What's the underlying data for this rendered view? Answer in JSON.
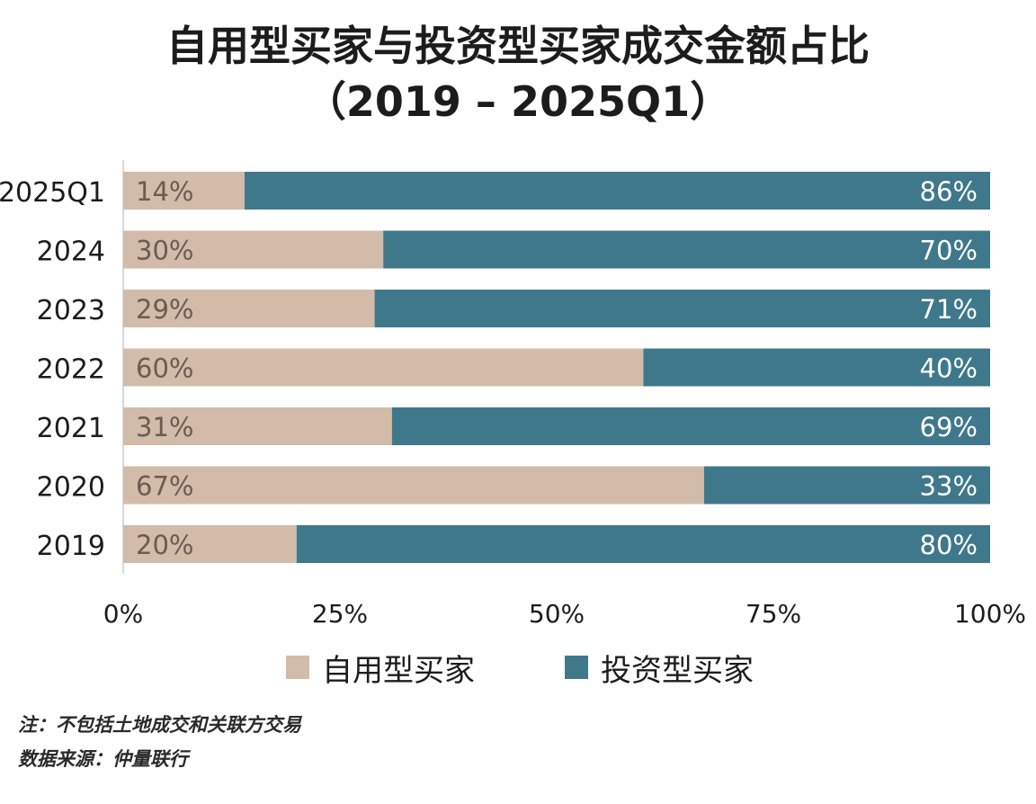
{
  "chart_data": {
    "type": "bar",
    "orientation": "horizontal",
    "stacked": true,
    "title": "自用型买家与投资型买家成交金额占比",
    "subtitle": "（2019 – 2025Q1）",
    "categories": [
      "2025Q1",
      "2024",
      "2023",
      "2022",
      "2021",
      "2020",
      "2019"
    ],
    "series": [
      {
        "name": "自用型买家",
        "values": [
          14,
          30,
          29,
          60,
          31,
          67,
          20
        ],
        "labels": [
          "14%",
          "30%",
          "29%",
          "60%",
          "31%",
          "67%",
          "20%"
        ],
        "color": "#d2bba9"
      },
      {
        "name": "投资型买家",
        "values": [
          86,
          70,
          71,
          40,
          69,
          33,
          80
        ],
        "labels": [
          "86%",
          "70%",
          "71%",
          "40%",
          "69%",
          "33%",
          "80%"
        ],
        "color": "#40788b"
      }
    ],
    "xlim": [
      0,
      100
    ],
    "xticks": [
      0,
      25,
      50,
      75,
      100
    ],
    "xtick_labels": [
      "0%",
      "25%",
      "50%",
      "75%",
      "100%"
    ],
    "xlabel": "",
    "ylabel": "",
    "grid": false,
    "legend_position": "bottom"
  },
  "footnote": {
    "note": "注：不包括土地成交和关联方交易",
    "source": "数据来源：仲量联行"
  },
  "colors": {
    "label_on_light": "#6b5b52",
    "label_on_dark": "#ffffff",
    "axis_line": "#cccccc",
    "text": "#1c1c1c"
  }
}
